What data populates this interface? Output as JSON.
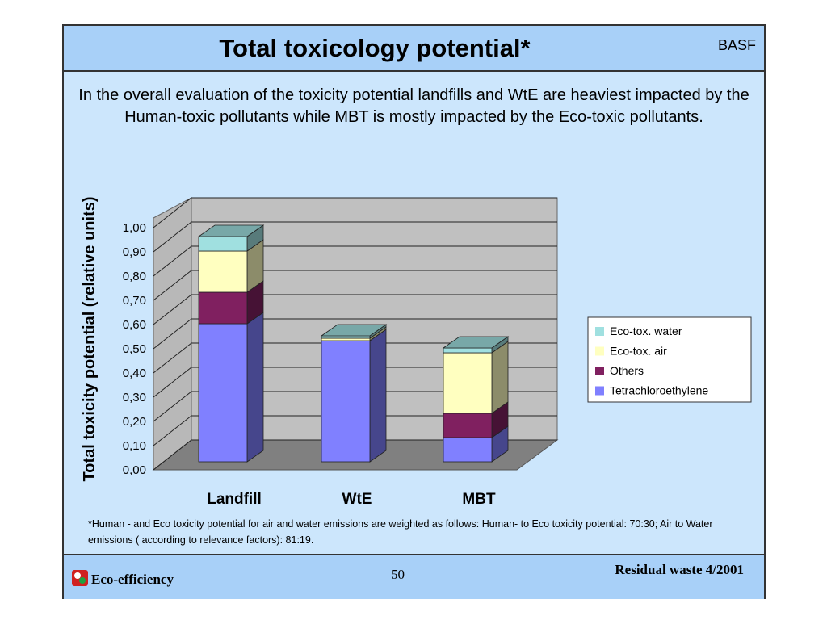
{
  "header": {
    "title": "Total toxicology potential*",
    "logo": "BASF"
  },
  "intro": "In the overall evaluation of the toxicity potential landfills and WtE are heaviest impacted by the Human-toxic pollutants while MBT is mostly impacted by the Eco-toxic pollutants.",
  "chart_data": {
    "type": "bar",
    "stacked": true,
    "y_label": "Total toxicity potential (relative units)",
    "categories": [
      "Landfill",
      "WtE",
      "MBT"
    ],
    "series": [
      {
        "name": "Eco-tox. water",
        "color": "#a0e0e0",
        "values": [
          0.06,
          0.01,
          0.02
        ]
      },
      {
        "name": "Eco-tox. air",
        "color": "#ffffc0",
        "values": [
          0.17,
          0.01,
          0.25
        ]
      },
      {
        "name": "Others",
        "color": "#802060",
        "values": [
          0.13,
          0,
          0.1
        ]
      },
      {
        "name": "Tetrachloroethylene",
        "color": "#8080ff",
        "values": [
          0.57,
          0.5,
          0.1
        ]
      }
    ],
    "ylim": [
      0,
      1
    ],
    "yticks": [
      {
        "value": 0,
        "label": "0,00"
      },
      {
        "value": 0.1,
        "label": "0,10"
      },
      {
        "value": 0.2,
        "label": "0,20"
      },
      {
        "value": 0.3,
        "label": "0,30"
      },
      {
        "value": 0.4,
        "label": "0,40"
      },
      {
        "value": 0.5,
        "label": "0,50"
      },
      {
        "value": 0.6,
        "label": "0,60"
      },
      {
        "value": 0.7,
        "label": "0,70"
      },
      {
        "value": 0.8,
        "label": "0,80"
      },
      {
        "value": 0.9,
        "label": "0,90"
      },
      {
        "value": 1,
        "label": "1,00"
      }
    ],
    "grid": true,
    "legend": "right"
  },
  "footnote": "*Human - and Eco toxicity potential for air and water emissions are weighted as follows: Human- to Eco toxicity potential: 70:30; Air to Water emissions ( according to relevance factors): 81:19.",
  "footer": {
    "left": "Eco-efficiency",
    "page": 50,
    "right": "Residual waste 4/2001"
  }
}
